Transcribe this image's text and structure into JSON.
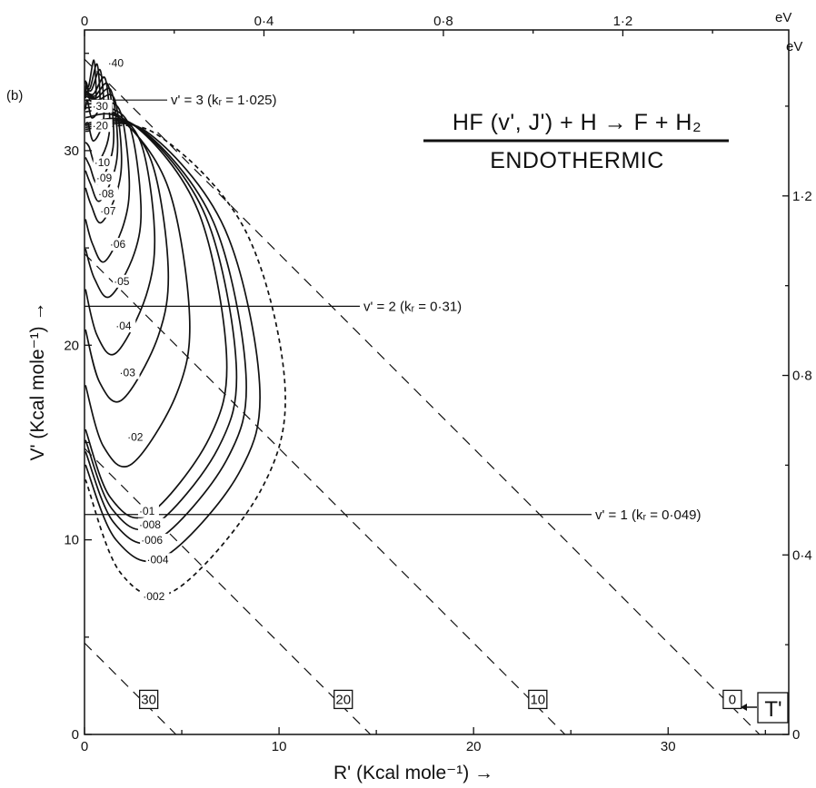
{
  "chart_data": {
    "type": "contour",
    "panel_label": "(b)",
    "title": "HF (v', J') + H → F + H₂",
    "subtitle": "ENDOTHERMIC",
    "xlabel": "R' (Kcal mole⁻¹) →",
    "ylabel": "V' (Kcal mole⁻¹) →",
    "xlim": [
      0,
      36.2
    ],
    "ylim": [
      0,
      36.2
    ],
    "top_axis_unit": "eV",
    "right_axis_unit": "eV",
    "x_ticks": [
      "0",
      "10",
      "20",
      "30"
    ],
    "y_ticks": [
      "0",
      "10",
      "20",
      "30"
    ],
    "top_ticks": [
      "0",
      "0·4",
      "0·8",
      "1·2"
    ],
    "right_ticks": [
      "0",
      "0·4",
      "0·8",
      "1·2"
    ],
    "vibrational_levels": [
      {
        "label": "v' = 3 (kᵣ = 1·025)",
        "y": 32.6
      },
      {
        "label": "v' = 2 (kᵣ = 0·31)",
        "y": 22.0
      },
      {
        "label": "v' = 1 (kᵣ = 0·049)",
        "y": 11.3
      }
    ],
    "constant_T_lines": [
      {
        "label": "30",
        "label_x": 3.3,
        "label_y": 1.8
      },
      {
        "label": "20",
        "label_x": 13.3,
        "label_y": 1.8
      },
      {
        "label": "10",
        "label_x": 23.3,
        "label_y": 1.8
      },
      {
        "label": "0",
        "label_x": 33.3,
        "label_y": 1.8
      }
    ],
    "T_axis_label": "T'",
    "contours": [
      {
        "label": "·40",
        "label_x": 1.2,
        "label_y": 34.3,
        "peak_y": 33.3,
        "x_max_at": 0.6,
        "x_max_y": 33.0,
        "y_min": 32.3,
        "y_max_left": 33.6,
        "dashed": false
      },
      {
        "label": "·30",
        "label_x": 0.4,
        "label_y": 32.1,
        "peak_y": 33.2,
        "x_max_at": 0.8,
        "x_max_y": 32.7,
        "y_min": 31.4,
        "y_max_left": 33.5,
        "dashed": false
      },
      {
        "label": "·20",
        "label_x": 0.4,
        "label_y": 31.1,
        "peak_y": 33.1,
        "x_max_at": 1.0,
        "x_max_y": 32.2,
        "y_min": 30.2,
        "y_max_left": 33.3,
        "dashed": false
      },
      {
        "label": "·10",
        "label_x": 0.5,
        "label_y": 29.2,
        "peak_y": 32.9,
        "x_max_at": 1.3,
        "x_max_y": 31.6,
        "y_min": 29.0,
        "y_max_left": 33.1,
        "dashed": false
      },
      {
        "label": "·09",
        "label_x": 0.6,
        "label_y": 28.4,
        "peak_y": 32.8,
        "x_max_at": 1.5,
        "x_max_y": 31.0,
        "y_min": 28.0,
        "y_max_left": 33.0,
        "dashed": false
      },
      {
        "label": "·08",
        "label_x": 0.7,
        "label_y": 27.6,
        "peak_y": 32.7,
        "x_max_at": 1.7,
        "x_max_y": 30.5,
        "y_min": 27.1,
        "y_max_left": 32.9,
        "dashed": false
      },
      {
        "label": "·07",
        "label_x": 0.8,
        "label_y": 26.7,
        "peak_y": 32.6,
        "x_max_at": 1.9,
        "x_max_y": 29.8,
        "y_min": 26.0,
        "y_max_left": 32.8,
        "dashed": false
      },
      {
        "label": "·06",
        "label_x": 1.3,
        "label_y": 25.0,
        "peak_y": 32.5,
        "x_max_at": 2.3,
        "x_max_y": 28.5,
        "y_min": 24.0,
        "y_max_left": 32.6,
        "dashed": false
      },
      {
        "label": "·05",
        "label_x": 1.5,
        "label_y": 23.1,
        "peak_y": 32.3,
        "x_max_at": 2.9,
        "x_max_y": 27.2,
        "y_min": 22.2,
        "y_max_left": 32.4,
        "dashed": false
      },
      {
        "label": "·04",
        "label_x": 1.6,
        "label_y": 20.8,
        "peak_y": 32.1,
        "x_max_at": 3.6,
        "x_max_y": 25.8,
        "y_min": 19.3,
        "y_max_left": 32.2,
        "dashed": false
      },
      {
        "label": "·03",
        "label_x": 1.8,
        "label_y": 18.4,
        "peak_y": 31.9,
        "x_max_at": 4.3,
        "x_max_y": 24.0,
        "y_min": 16.9,
        "y_max_left": 32.0,
        "dashed": false
      },
      {
        "label": "·02",
        "label_x": 2.2,
        "label_y": 15.1,
        "peak_y": 31.6,
        "x_max_at": 5.4,
        "x_max_y": 21.5,
        "y_min": 13.6,
        "y_max_left": 31.7,
        "dashed": false
      },
      {
        "label": "·01",
        "label_x": 2.8,
        "label_y": 11.3,
        "peak_y": 31.3,
        "x_max_at": 7.3,
        "x_max_y": 19.5,
        "y_min": 11.0,
        "y_max_left": 31.4,
        "dashed": false
      },
      {
        "label": "·008",
        "label_x": 2.8,
        "label_y": 10.6,
        "peak_y": 31.2,
        "x_max_at": 7.8,
        "x_max_y": 19.0,
        "y_min": 10.4,
        "y_max_left": 31.3,
        "dashed": false
      },
      {
        "label": "·006",
        "label_x": 2.9,
        "label_y": 9.8,
        "peak_y": 31.1,
        "x_max_at": 8.3,
        "x_max_y": 18.5,
        "y_min": 9.7,
        "y_max_left": 31.2,
        "dashed": false
      },
      {
        "label": "·004",
        "label_x": 3.2,
        "label_y": 8.8,
        "peak_y": 31.0,
        "x_max_at": 9.0,
        "x_max_y": 18.0,
        "y_min": 8.8,
        "y_max_left": 31.1,
        "dashed": false
      },
      {
        "label": "·002",
        "label_x": 3.0,
        "label_y": 6.9,
        "peak_y": 30.9,
        "x_max_at": 10.3,
        "x_max_y": 18.0,
        "y_min": 7.1,
        "y_max_left": 31.0,
        "dashed": true
      }
    ]
  }
}
